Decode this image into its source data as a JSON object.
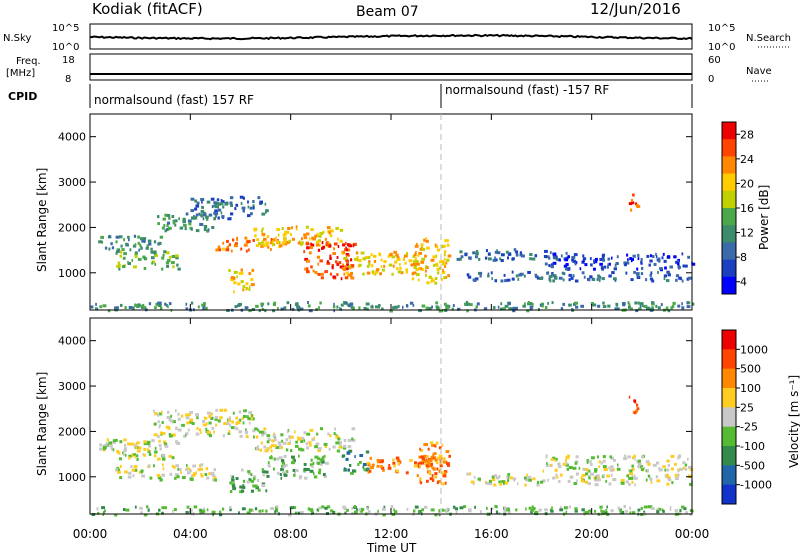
{
  "header": {
    "station": "Kodiak (fitACF)",
    "beam": "Beam 07",
    "date": "12/Jun/2016"
  },
  "strips": {
    "nsky_label": "N.Sky",
    "nsky_ticks": [
      "10^5",
      "10^0"
    ],
    "nsearch_label": "N.Search",
    "nsearch_ticks": [
      "10^5",
      "10^0"
    ],
    "freq_label": "Freq.",
    "freq_unit": "[MHz]",
    "freq_ticks": [
      "18",
      "8"
    ],
    "nave_label": "Nave",
    "nave_ticks": [
      "60",
      "0"
    ],
    "cpid_label": "CPID",
    "cpid_segments": [
      {
        "label": "normalsound (fast) 157 RF",
        "start_hour": 0,
        "end_hour": 14
      },
      {
        "label": "normalsound (fast) -157 RF",
        "start_hour": 14,
        "end_hour": 24
      }
    ]
  },
  "chart_data": [
    {
      "type": "heatmap",
      "name": "Power",
      "ylabel": "Slant Range [km]",
      "xlabel": "Time UT",
      "xlim": [
        0,
        24
      ],
      "ylim": [
        180,
        4500
      ],
      "yticks": [
        1000,
        2000,
        3000,
        4000
      ],
      "xticks": [
        "00:00",
        "04:00",
        "08:00",
        "12:00",
        "16:00",
        "20:00",
        "00:00"
      ],
      "colorbar": {
        "label": "Power [dB]",
        "ticks": [
          "4",
          "8",
          "12",
          "16",
          "20",
          "24",
          "28"
        ],
        "colors": [
          "#0000ff",
          "#1a40c0",
          "#3a6aa8",
          "#3c8c6c",
          "#4aa84a",
          "#c0d000",
          "#ffcc00",
          "#ff8800",
          "#ff4400",
          "#ee0000"
        ]
      },
      "bands": [
        {
          "t0": 0.3,
          "t1": 2.8,
          "r0": 1500,
          "r1": 1850,
          "level": 3
        },
        {
          "t0": 1.0,
          "t1": 3.5,
          "r0": 1100,
          "r1": 1500,
          "level": 4
        },
        {
          "t0": 2.5,
          "t1": 5.0,
          "r0": 1950,
          "r1": 2350,
          "level": 3
        },
        {
          "t0": 4.0,
          "t1": 7.0,
          "r0": 2200,
          "r1": 2700,
          "level": 2
        },
        {
          "t0": 5.0,
          "t1": 7.5,
          "r0": 1500,
          "r1": 1800,
          "level": 7
        },
        {
          "t0": 5.5,
          "t1": 6.5,
          "r0": 600,
          "r1": 1100,
          "level": 6
        },
        {
          "t0": 6.5,
          "t1": 10.0,
          "r0": 1600,
          "r1": 2050,
          "level": 6
        },
        {
          "t0": 8.5,
          "t1": 10.5,
          "r0": 900,
          "r1": 1700,
          "level": 8
        },
        {
          "t0": 10.0,
          "t1": 13.0,
          "r0": 1000,
          "r1": 1500,
          "level": 6
        },
        {
          "t0": 12.8,
          "t1": 14.3,
          "r0": 800,
          "r1": 1800,
          "level": 6
        },
        {
          "t0": 14.5,
          "t1": 19.0,
          "r0": 1300,
          "r1": 1550,
          "level": 2
        },
        {
          "t0": 15.0,
          "t1": 24.0,
          "r0": 850,
          "r1": 1050,
          "level": 2
        },
        {
          "t0": 18.0,
          "t1": 24.0,
          "r0": 1100,
          "r1": 1450,
          "level": 1
        },
        {
          "t0": 21.4,
          "t1": 21.8,
          "r0": 2400,
          "r1": 2800,
          "level": 8
        },
        {
          "t0": 0.0,
          "t1": 24.0,
          "r0": 190,
          "r1": 380,
          "level": 3
        }
      ]
    },
    {
      "type": "heatmap",
      "name": "Velocity",
      "ylabel": "Slant Range [km]",
      "xlabel": "Time UT",
      "xlim": [
        0,
        24
      ],
      "ylim": [
        180,
        4500
      ],
      "yticks": [
        1000,
        2000,
        3000,
        4000
      ],
      "xticks": [
        "00:00",
        "04:00",
        "08:00",
        "12:00",
        "16:00",
        "20:00",
        "00:00"
      ],
      "colorbar": {
        "label": "Velocity [m s⁻¹]",
        "ticks": [
          "1000",
          "500",
          "100",
          "25",
          "-25",
          "-100",
          "-500",
          "-1000"
        ],
        "colors": [
          "#1133cc",
          "#2266aa",
          "#338a4a",
          "#55bb33",
          "#c8c8c8",
          "#ffcc22",
          "#ff8800",
          "#ff4400",
          "#ee0000"
        ]
      },
      "bands": [
        {
          "t0": 0.3,
          "t1": 3.5,
          "r0": 1400,
          "r1": 1850,
          "level": 4
        },
        {
          "t0": 2.5,
          "t1": 6.5,
          "r0": 1900,
          "r1": 2500,
          "level": 4
        },
        {
          "t0": 1.0,
          "t1": 5.0,
          "r0": 950,
          "r1": 1300,
          "level": 4
        },
        {
          "t0": 5.5,
          "t1": 7.0,
          "r0": 700,
          "r1": 1200,
          "level": 3
        },
        {
          "t0": 6.5,
          "t1": 10.5,
          "r0": 1600,
          "r1": 2100,
          "level": 4
        },
        {
          "t0": 7.0,
          "t1": 9.5,
          "r0": 1000,
          "r1": 1500,
          "level": 3
        },
        {
          "t0": 10.0,
          "t1": 11.0,
          "r0": 1100,
          "r1": 1600,
          "level": 2
        },
        {
          "t0": 11.0,
          "t1": 14.3,
          "r0": 1100,
          "r1": 1450,
          "level": 6
        },
        {
          "t0": 13.0,
          "t1": 14.3,
          "r0": 850,
          "r1": 1800,
          "level": 6
        },
        {
          "t0": 15.0,
          "t1": 24.0,
          "r0": 850,
          "r1": 1100,
          "level": 4
        },
        {
          "t0": 18.0,
          "t1": 24.0,
          "r0": 1150,
          "r1": 1500,
          "level": 4
        },
        {
          "t0": 21.4,
          "t1": 21.8,
          "r0": 2400,
          "r1": 2800,
          "level": 7
        },
        {
          "t0": 0.0,
          "t1": 24.0,
          "r0": 190,
          "r1": 380,
          "level": 3
        }
      ]
    }
  ]
}
